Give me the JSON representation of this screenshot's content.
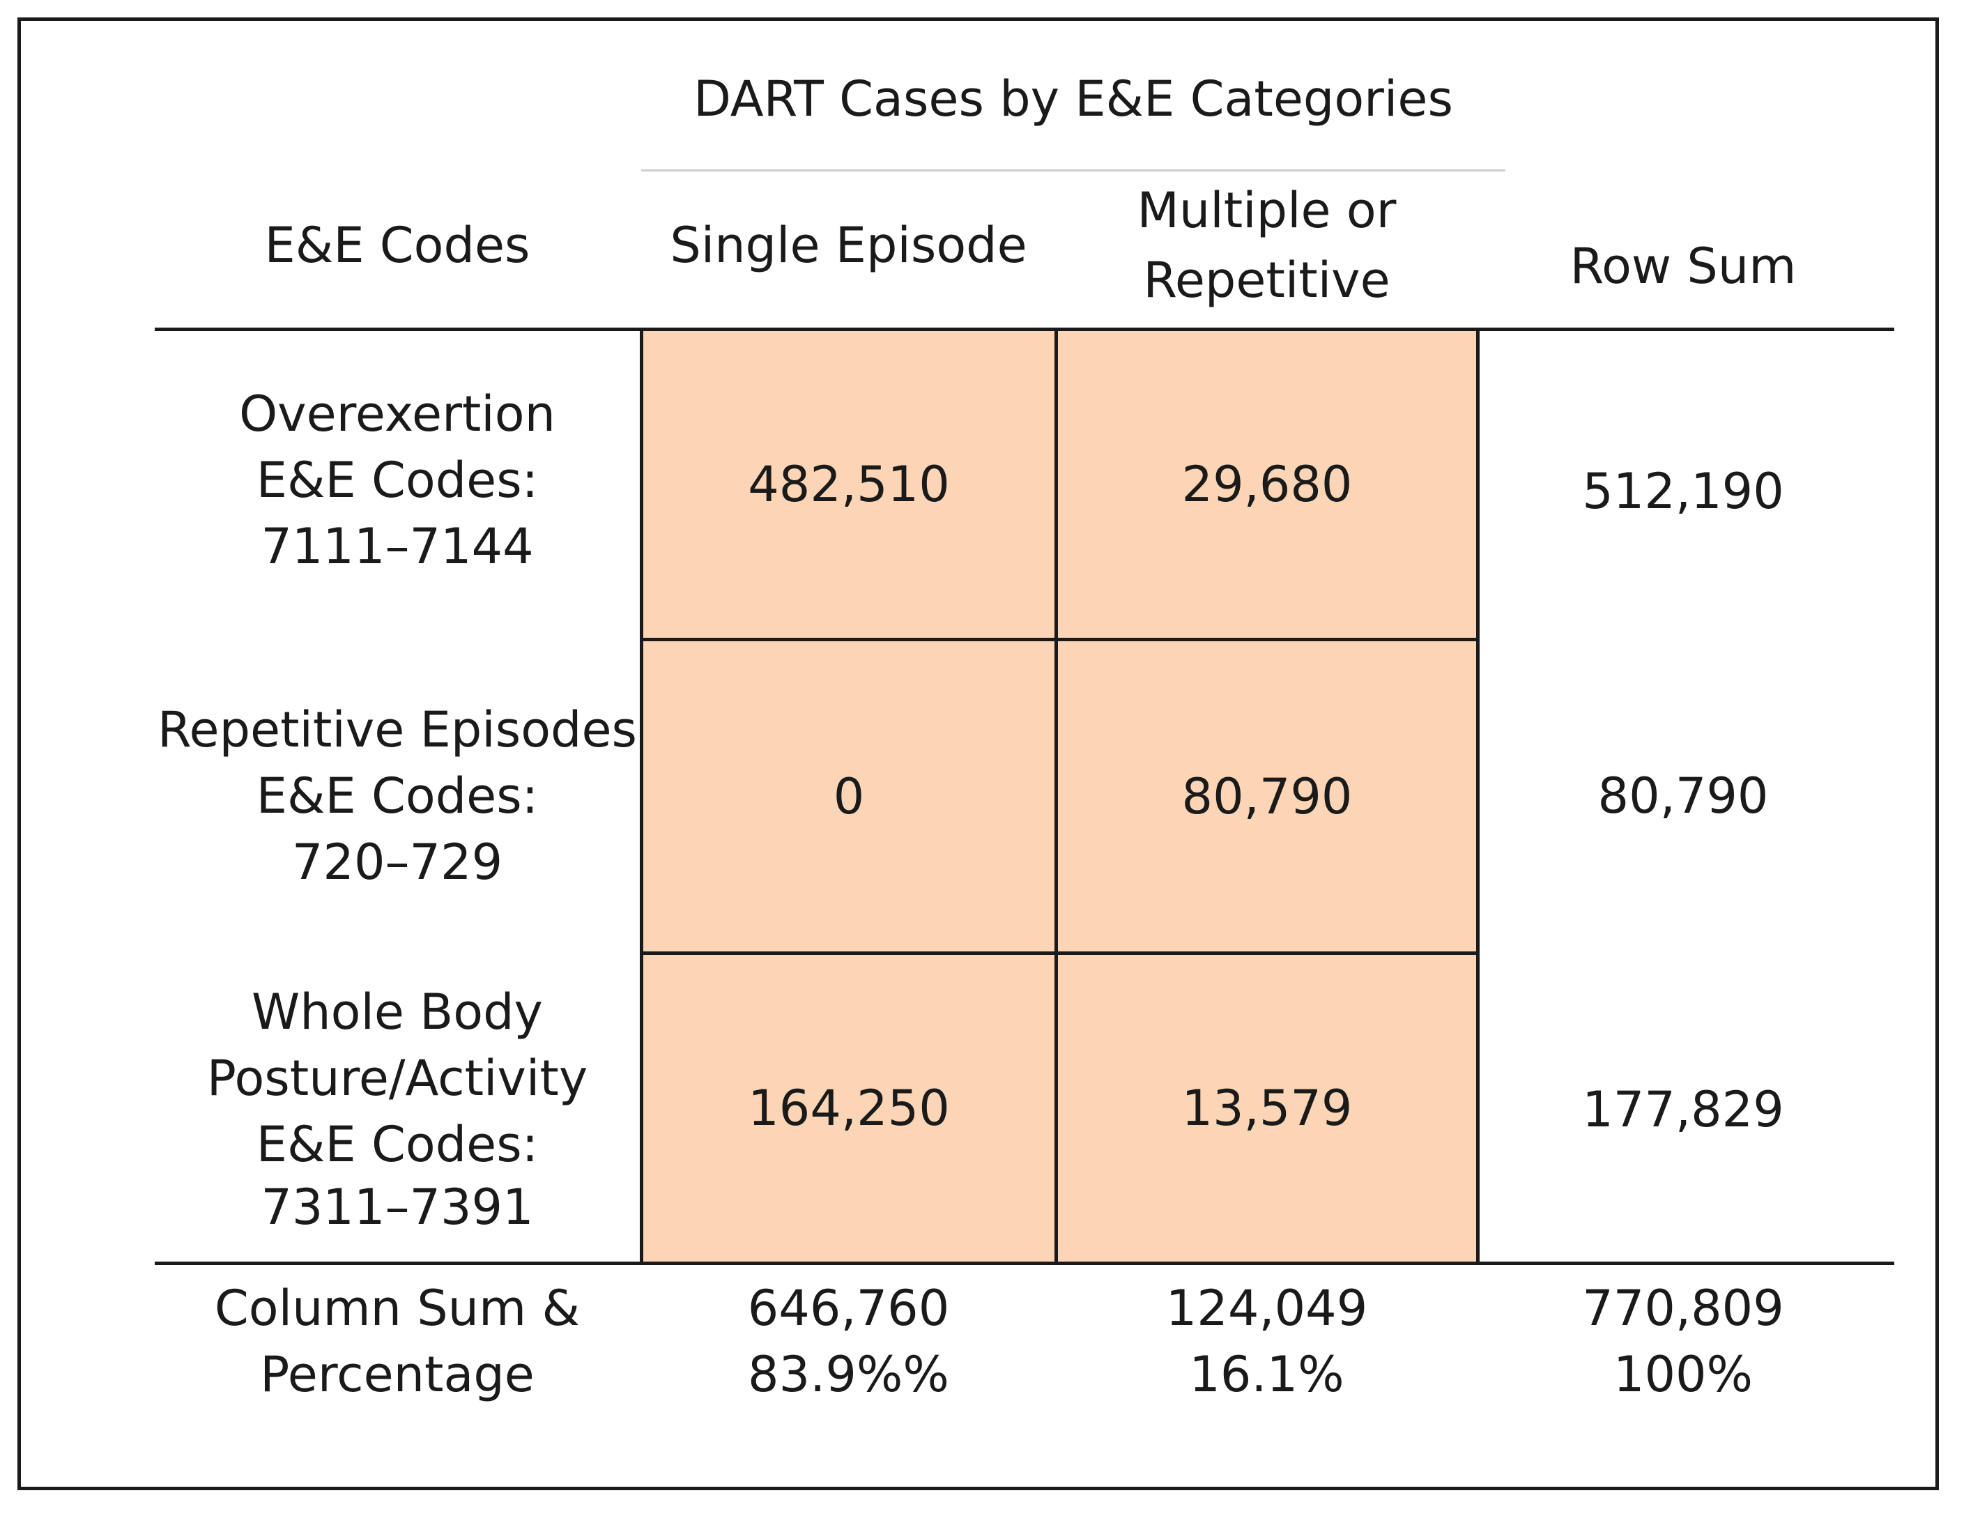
{
  "table": {
    "title": "DART Cases by E&E Categories",
    "header": {
      "codes": "E&E Codes",
      "single": "Single Episode",
      "multiple_line1": "Multiple or",
      "multiple_line2": "Repetitive",
      "rowsum": "Row Sum"
    },
    "rows": [
      {
        "label_lines": [
          "Overexertion",
          "E&E Codes:",
          "7111–7144"
        ],
        "single": "482,510",
        "multiple": "29,680",
        "rowsum": "512,190"
      },
      {
        "label_lines": [
          "Repetitive Episodes",
          "E&E Codes:",
          "720–729"
        ],
        "single": "0",
        "multiple": "80,790",
        "rowsum": "80,790"
      },
      {
        "label_lines": [
          "Whole Body",
          "Posture/Activity",
          "E&E Codes:",
          "7311–7391"
        ],
        "single": "164,250",
        "multiple": "13,579",
        "rowsum": "177,829"
      }
    ],
    "footer": {
      "label_line1": "Column Sum &",
      "label_line2": "Percentage",
      "single_sum": "646,760",
      "single_pct": "83.9%%",
      "multiple_sum": "124,049",
      "multiple_pct": "16.1%",
      "total_sum": "770,809",
      "total_pct": "100%"
    }
  }
}
